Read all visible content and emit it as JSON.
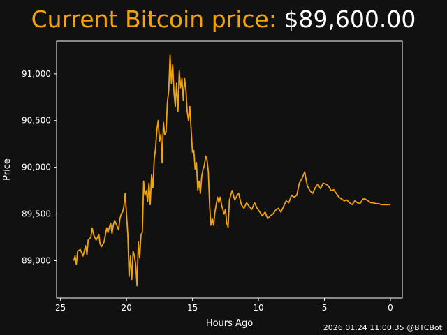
{
  "header": {
    "label": "Current Bitcoin price: ",
    "price": "$89,600.00"
  },
  "footer": {
    "timestamp": "2026.01.24 11:00:35 @BTCBot"
  },
  "colors": {
    "background": "#111111",
    "line": "#f0a30a",
    "label": "#f0a30a",
    "text": "#ffffff"
  },
  "chart_data": {
    "type": "line",
    "title": "",
    "xlabel": "Hours Ago",
    "ylabel": "Price",
    "xlim": [
      25.3,
      -0.9
    ],
    "ylim": [
      88600,
      91350
    ],
    "x_reversed": true,
    "grid": false,
    "x_ticks": [
      25,
      20,
      15,
      10,
      5,
      0
    ],
    "x_tick_labels": [
      "25",
      "20",
      "15",
      "10",
      "5",
      "0"
    ],
    "y_ticks": [
      89000,
      89500,
      90000,
      90500,
      91000
    ],
    "y_tick_labels": [
      "89,000",
      "89,500",
      "90,000",
      "90,500",
      "91,000"
    ],
    "series": [
      {
        "name": "",
        "points": [
          [
            24.0,
            89000
          ],
          [
            23.9,
            89050
          ],
          [
            23.8,
            88960
          ],
          [
            23.7,
            89100
          ],
          [
            23.5,
            89120
          ],
          [
            23.3,
            89050
          ],
          [
            23.2,
            89100
          ],
          [
            23.1,
            89160
          ],
          [
            23.0,
            89060
          ],
          [
            22.9,
            89220
          ],
          [
            22.7,
            89250
          ],
          [
            22.6,
            89350
          ],
          [
            22.5,
            89280
          ],
          [
            22.3,
            89220
          ],
          [
            22.1,
            89280
          ],
          [
            22.0,
            89180
          ],
          [
            21.9,
            89150
          ],
          [
            21.7,
            89200
          ],
          [
            21.5,
            89350
          ],
          [
            21.4,
            89300
          ],
          [
            21.3,
            89360
          ],
          [
            21.2,
            89400
          ],
          [
            21.1,
            89290
          ],
          [
            21.0,
            89380
          ],
          [
            20.9,
            89430
          ],
          [
            20.8,
            89400
          ],
          [
            20.6,
            89330
          ],
          [
            20.5,
            89450
          ],
          [
            20.4,
            89500
          ],
          [
            20.3,
            89520
          ],
          [
            20.2,
            89580
          ],
          [
            20.1,
            89720
          ],
          [
            20.0,
            89500
          ],
          [
            19.9,
            89280
          ],
          [
            19.8,
            88830
          ],
          [
            19.7,
            89050
          ],
          [
            19.6,
            88800
          ],
          [
            19.5,
            89100
          ],
          [
            19.4,
            89050
          ],
          [
            19.3,
            88950
          ],
          [
            19.2,
            88730
          ],
          [
            19.1,
            89200
          ],
          [
            19.0,
            89030
          ],
          [
            18.9,
            89280
          ],
          [
            18.8,
            89300
          ],
          [
            18.7,
            89850
          ],
          [
            18.6,
            89700
          ],
          [
            18.5,
            89750
          ],
          [
            18.4,
            89630
          ],
          [
            18.3,
            89830
          ],
          [
            18.2,
            89600
          ],
          [
            18.1,
            89920
          ],
          [
            18.0,
            89780
          ],
          [
            17.9,
            90080
          ],
          [
            17.8,
            90200
          ],
          [
            17.7,
            90400
          ],
          [
            17.6,
            90500
          ],
          [
            17.5,
            90280
          ],
          [
            17.4,
            90350
          ],
          [
            17.3,
            90050
          ],
          [
            17.2,
            90480
          ],
          [
            17.1,
            90350
          ],
          [
            17.0,
            90380
          ],
          [
            16.9,
            90700
          ],
          [
            16.8,
            90820
          ],
          [
            16.7,
            91200
          ],
          [
            16.6,
            90900
          ],
          [
            16.5,
            91100
          ],
          [
            16.4,
            90800
          ],
          [
            16.3,
            90650
          ],
          [
            16.2,
            90900
          ],
          [
            16.1,
            90600
          ],
          [
            16.0,
            91030
          ],
          [
            15.9,
            90850
          ],
          [
            15.8,
            90950
          ],
          [
            15.7,
            90720
          ],
          [
            15.6,
            90950
          ],
          [
            15.5,
            90830
          ],
          [
            15.4,
            90600
          ],
          [
            15.3,
            90500
          ],
          [
            15.2,
            90650
          ],
          [
            15.1,
            90400
          ],
          [
            15.0,
            90160
          ],
          [
            14.9,
            90180
          ],
          [
            14.8,
            89980
          ],
          [
            14.7,
            90050
          ],
          [
            14.6,
            89750
          ],
          [
            14.5,
            89850
          ],
          [
            14.4,
            89720
          ],
          [
            14.3,
            89900
          ],
          [
            14.2,
            89980
          ],
          [
            14.1,
            90020
          ],
          [
            14.0,
            90120
          ],
          [
            13.9,
            90080
          ],
          [
            13.8,
            89950
          ],
          [
            13.7,
            89580
          ],
          [
            13.6,
            89380
          ],
          [
            13.5,
            89450
          ],
          [
            13.4,
            89380
          ],
          [
            13.3,
            89520
          ],
          [
            13.2,
            89600
          ],
          [
            13.1,
            89680
          ],
          [
            13.0,
            89620
          ],
          [
            12.9,
            89680
          ],
          [
            12.8,
            89600
          ],
          [
            12.6,
            89500
          ],
          [
            12.5,
            89550
          ],
          [
            12.4,
            89400
          ],
          [
            12.3,
            89360
          ],
          [
            12.2,
            89650
          ],
          [
            12.0,
            89750
          ],
          [
            11.8,
            89650
          ],
          [
            11.6,
            89700
          ],
          [
            11.5,
            89720
          ],
          [
            11.3,
            89600
          ],
          [
            11.1,
            89560
          ],
          [
            10.9,
            89620
          ],
          [
            10.7,
            89580
          ],
          [
            10.5,
            89550
          ],
          [
            10.3,
            89620
          ],
          [
            10.1,
            89560
          ],
          [
            9.9,
            89520
          ],
          [
            9.7,
            89480
          ],
          [
            9.5,
            89520
          ],
          [
            9.3,
            89450
          ],
          [
            9.1,
            89480
          ],
          [
            8.9,
            89500
          ],
          [
            8.7,
            89540
          ],
          [
            8.5,
            89560
          ],
          [
            8.3,
            89520
          ],
          [
            8.1,
            89580
          ],
          [
            7.9,
            89640
          ],
          [
            7.7,
            89620
          ],
          [
            7.5,
            89700
          ],
          [
            7.3,
            89680
          ],
          [
            7.1,
            89700
          ],
          [
            6.9,
            89830
          ],
          [
            6.7,
            89880
          ],
          [
            6.5,
            89950
          ],
          [
            6.3,
            89800
          ],
          [
            6.1,
            89750
          ],
          [
            5.9,
            89720
          ],
          [
            5.7,
            89780
          ],
          [
            5.5,
            89820
          ],
          [
            5.3,
            89770
          ],
          [
            5.1,
            89830
          ],
          [
            4.9,
            89820
          ],
          [
            4.7,
            89800
          ],
          [
            4.5,
            89750
          ],
          [
            4.3,
            89760
          ],
          [
            4.1,
            89720
          ],
          [
            3.9,
            89680
          ],
          [
            3.7,
            89660
          ],
          [
            3.5,
            89640
          ],
          [
            3.3,
            89650
          ],
          [
            3.1,
            89620
          ],
          [
            2.9,
            89600
          ],
          [
            2.7,
            89640
          ],
          [
            2.5,
            89620
          ],
          [
            2.3,
            89610
          ],
          [
            2.1,
            89660
          ],
          [
            1.9,
            89660
          ],
          [
            1.7,
            89640
          ],
          [
            1.5,
            89620
          ],
          [
            1.3,
            89620
          ],
          [
            1.1,
            89610
          ],
          [
            0.9,
            89610
          ],
          [
            0.7,
            89600
          ],
          [
            0.4,
            89600
          ],
          [
            0.0,
            89600
          ]
        ]
      }
    ]
  }
}
